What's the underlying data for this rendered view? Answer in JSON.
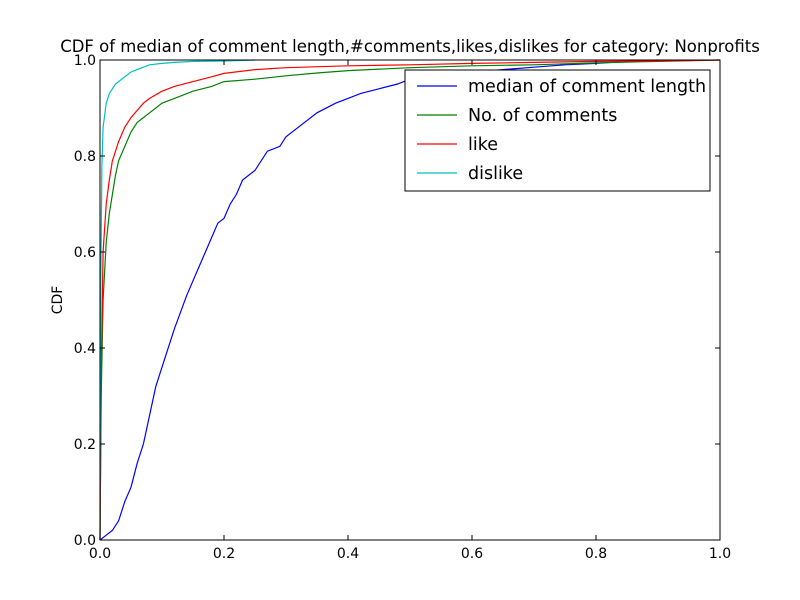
{
  "chart_data": {
    "type": "line",
    "title": "CDF of median of comment length,#comments,likes,dislikes for category: Nonprofits",
    "xlabel": "",
    "ylabel": "CDF",
    "xlim": [
      0.0,
      1.0
    ],
    "ylim": [
      0.0,
      1.0
    ],
    "x_ticks": [
      "0.0",
      "0.2",
      "0.4",
      "0.6",
      "0.8",
      "1.0"
    ],
    "y_ticks": [
      "0.0",
      "0.2",
      "0.4",
      "0.6",
      "0.8",
      "1.0"
    ],
    "grid": false,
    "legend_position": "top-right",
    "series": [
      {
        "name": "median of comment length",
        "color": "#0000ff",
        "x": [
          0.0,
          0.01,
          0.02,
          0.03,
          0.04,
          0.05,
          0.06,
          0.07,
          0.08,
          0.09,
          0.1,
          0.12,
          0.14,
          0.16,
          0.18,
          0.19,
          0.2,
          0.21,
          0.22,
          0.23,
          0.25,
          0.27,
          0.29,
          0.3,
          0.32,
          0.35,
          0.38,
          0.4,
          0.42,
          0.45,
          0.48,
          0.5,
          0.55,
          0.6,
          0.65,
          0.7,
          0.75,
          0.8,
          0.85,
          0.9
        ],
        "y": [
          0.0,
          0.01,
          0.02,
          0.04,
          0.08,
          0.11,
          0.16,
          0.2,
          0.26,
          0.32,
          0.36,
          0.44,
          0.51,
          0.57,
          0.63,
          0.66,
          0.67,
          0.7,
          0.72,
          0.75,
          0.77,
          0.81,
          0.82,
          0.84,
          0.86,
          0.89,
          0.91,
          0.92,
          0.93,
          0.94,
          0.95,
          0.96,
          0.97,
          0.975,
          0.98,
          0.985,
          0.99,
          0.993,
          0.997,
          1.0
        ]
      },
      {
        "name": "No. of comments",
        "color": "#008000",
        "x": [
          0.0,
          0.002,
          0.005,
          0.01,
          0.015,
          0.02,
          0.025,
          0.03,
          0.04,
          0.05,
          0.06,
          0.07,
          0.08,
          0.1,
          0.12,
          0.15,
          0.18,
          0.2,
          0.25,
          0.3,
          0.35,
          0.4,
          0.5,
          0.6,
          0.7,
          0.8,
          0.9,
          1.0
        ],
        "y": [
          0.0,
          0.3,
          0.5,
          0.62,
          0.68,
          0.72,
          0.76,
          0.79,
          0.82,
          0.85,
          0.87,
          0.88,
          0.89,
          0.91,
          0.92,
          0.935,
          0.945,
          0.955,
          0.96,
          0.967,
          0.973,
          0.978,
          0.984,
          0.988,
          0.99,
          0.994,
          0.997,
          1.0
        ]
      },
      {
        "name": "like",
        "color": "#ff0000",
        "x": [
          0.0,
          0.002,
          0.005,
          0.01,
          0.015,
          0.02,
          0.025,
          0.03,
          0.04,
          0.05,
          0.06,
          0.07,
          0.08,
          0.1,
          0.12,
          0.15,
          0.18,
          0.2,
          0.25,
          0.3,
          0.4,
          0.5,
          0.6,
          0.7,
          0.8,
          0.9,
          1.0
        ],
        "y": [
          0.0,
          0.35,
          0.6,
          0.7,
          0.75,
          0.79,
          0.81,
          0.83,
          0.86,
          0.88,
          0.895,
          0.91,
          0.92,
          0.935,
          0.945,
          0.955,
          0.965,
          0.972,
          0.98,
          0.984,
          0.988,
          0.99,
          0.993,
          0.995,
          0.997,
          0.998,
          1.0
        ]
      },
      {
        "name": "dislike",
        "color": "#00bfbf",
        "x": [
          0.0,
          0.001,
          0.003,
          0.005,
          0.008,
          0.01,
          0.015,
          0.02,
          0.025,
          0.03,
          0.04,
          0.05,
          0.06,
          0.07,
          0.08,
          0.1,
          0.12,
          0.15,
          0.2,
          0.25
        ],
        "y": [
          0.0,
          0.5,
          0.78,
          0.86,
          0.89,
          0.91,
          0.93,
          0.94,
          0.95,
          0.955,
          0.965,
          0.975,
          0.98,
          0.985,
          0.99,
          0.993,
          0.995,
          0.997,
          0.998,
          1.0
        ]
      }
    ]
  }
}
